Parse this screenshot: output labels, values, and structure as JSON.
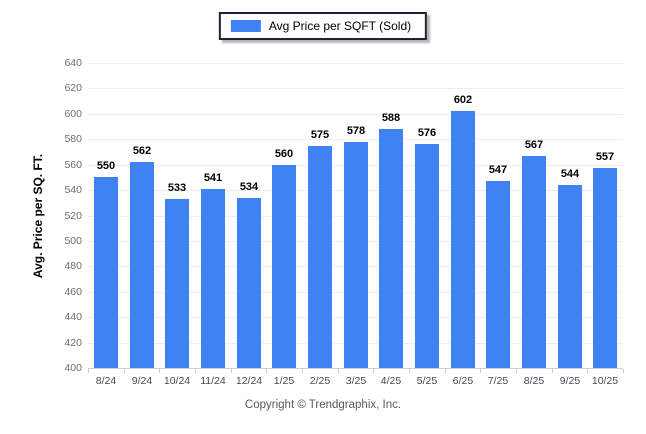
{
  "legend": {
    "label": "Avg Price per SQFT (Sold)"
  },
  "footer": {
    "text": "Copyright © Trendgraphix, Inc."
  },
  "colors": {
    "accent": "#3E82F4",
    "grid": "#ededed",
    "axis_line": "#cfcfcf",
    "x_tick": "#c5ccd6",
    "y_label_text": "#6f6e6c",
    "x_label_text": "#3f4b58",
    "value_label_text": "#000000",
    "legend_border": "#1c2433",
    "footer_text": "#58595b"
  },
  "chart_data": {
    "type": "bar",
    "title": "",
    "series_name": "Avg Price per SQFT (Sold)",
    "categories": [
      "8/24",
      "9/24",
      "10/24",
      "11/24",
      "12/24",
      "1/25",
      "2/25",
      "3/25",
      "4/25",
      "5/25",
      "6/25",
      "7/25",
      "8/25",
      "9/25",
      "10/25"
    ],
    "values": [
      550,
      562,
      533,
      541,
      534,
      560,
      575,
      578,
      588,
      576,
      602,
      547,
      567,
      544,
      557
    ],
    "xlabel": "",
    "ylabel": "Avg. Price per SQ. FT.",
    "ylim": [
      400,
      640
    ],
    "ytick_step": 20,
    "grid": true,
    "value_labels": true,
    "legend_position": "top-center",
    "bar_color": "#3E82F4"
  }
}
